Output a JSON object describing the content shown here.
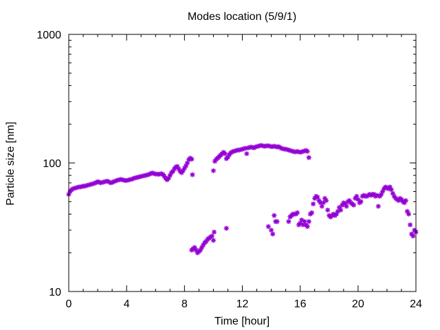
{
  "chart_data": {
    "type": "scatter",
    "title": "Modes location (5/9/1)",
    "xlabel": "Time [hour]",
    "ylabel": "Particle size [nm]",
    "xlim": [
      0,
      24
    ],
    "ylim": [
      10,
      1000
    ],
    "yscale": "log",
    "grid": false,
    "legend": "none",
    "marker": "asterisk",
    "color": "#9400d3",
    "x_ticks": [
      {
        "value": 0,
        "label": "0"
      },
      {
        "value": 4,
        "label": "4"
      },
      {
        "value": 8,
        "label": "8"
      },
      {
        "value": 12,
        "label": "12"
      },
      {
        "value": 16,
        "label": "16"
      },
      {
        "value": 20,
        "label": "20"
      },
      {
        "value": 24,
        "label": "24"
      }
    ],
    "y_ticks": [
      {
        "value": 10,
        "label": "10"
      },
      {
        "value": 100,
        "label": "100"
      },
      {
        "value": 1000,
        "label": "1000"
      }
    ],
    "x_minor_step": 1,
    "series": [
      {
        "points": [
          [
            0.0,
            57
          ],
          [
            0.1,
            60
          ],
          [
            0.2,
            62
          ],
          [
            0.3,
            63
          ],
          [
            0.4,
            63.5
          ],
          [
            0.5,
            64
          ],
          [
            0.6,
            64.5
          ],
          [
            0.7,
            65
          ],
          [
            0.8,
            65
          ],
          [
            0.9,
            65.5
          ],
          [
            1.0,
            66
          ],
          [
            1.1,
            66
          ],
          [
            1.2,
            66.5
          ],
          [
            1.3,
            67
          ],
          [
            1.4,
            67.5
          ],
          [
            1.5,
            68
          ],
          [
            1.6,
            68.5
          ],
          [
            1.7,
            69
          ],
          [
            1.8,
            69.5
          ],
          [
            1.9,
            70.5
          ],
          [
            2.0,
            71.5
          ],
          [
            2.1,
            71
          ],
          [
            2.2,
            70
          ],
          [
            2.3,
            70.5
          ],
          [
            2.4,
            71
          ],
          [
            2.5,
            71.5
          ],
          [
            2.6,
            72
          ],
          [
            2.7,
            72
          ],
          [
            2.8,
            71
          ],
          [
            2.9,
            70
          ],
          [
            3.0,
            70.5
          ],
          [
            3.1,
            71.5
          ],
          [
            3.2,
            72
          ],
          [
            3.3,
            73
          ],
          [
            3.4,
            73.5
          ],
          [
            3.5,
            74
          ],
          [
            3.6,
            74.5
          ],
          [
            3.7,
            74
          ],
          [
            3.8,
            73.5
          ],
          [
            3.9,
            73
          ],
          [
            4.0,
            73
          ],
          [
            4.1,
            73.5
          ],
          [
            4.2,
            74
          ],
          [
            4.3,
            74.5
          ],
          [
            4.4,
            75
          ],
          [
            4.5,
            76
          ],
          [
            4.6,
            76.5
          ],
          [
            4.7,
            77
          ],
          [
            4.8,
            77.5
          ],
          [
            4.9,
            78
          ],
          [
            5.0,
            78.5
          ],
          [
            5.1,
            79
          ],
          [
            5.2,
            79.5
          ],
          [
            5.3,
            80
          ],
          [
            5.4,
            80.5
          ],
          [
            5.5,
            81
          ],
          [
            5.6,
            82
          ],
          [
            5.7,
            83
          ],
          [
            5.8,
            83.5
          ],
          [
            5.9,
            82.5
          ],
          [
            6.0,
            82
          ],
          [
            6.1,
            82
          ],
          [
            6.2,
            81.5
          ],
          [
            6.3,
            82
          ],
          [
            6.4,
            82.5
          ],
          [
            6.5,
            81.5
          ],
          [
            6.6,
            79
          ],
          [
            6.7,
            76
          ],
          [
            6.8,
            74
          ],
          [
            6.9,
            76
          ],
          [
            7.0,
            80
          ],
          [
            7.1,
            84
          ],
          [
            7.2,
            86
          ],
          [
            7.3,
            90
          ],
          [
            7.4,
            93
          ],
          [
            7.5,
            94
          ],
          [
            7.6,
            90
          ],
          [
            7.7,
            86
          ],
          [
            7.8,
            84
          ],
          [
            7.9,
            87
          ],
          [
            8.0,
            91
          ],
          [
            8.1,
            95
          ],
          [
            8.2,
            100
          ],
          [
            8.3,
            106
          ],
          [
            8.4,
            109
          ],
          [
            8.5,
            107
          ],
          [
            8.55,
            81
          ],
          [
            10.0,
            87
          ],
          [
            10.1,
            103
          ],
          [
            10.2,
            107
          ],
          [
            10.3,
            109
          ],
          [
            10.4,
            112
          ],
          [
            10.5,
            115
          ],
          [
            10.6,
            118
          ],
          [
            10.7,
            121
          ],
          [
            10.8,
            118
          ],
          [
            10.9,
            108
          ],
          [
            11.0,
            111
          ],
          [
            11.1,
            116
          ],
          [
            11.2,
            120
          ],
          [
            11.3,
            122
          ],
          [
            11.4,
            123
          ],
          [
            11.5,
            124
          ],
          [
            11.6,
            125
          ],
          [
            11.7,
            126
          ],
          [
            11.8,
            126
          ],
          [
            11.9,
            127
          ],
          [
            12.0,
            128
          ],
          [
            12.1,
            129
          ],
          [
            12.2,
            130
          ],
          [
            12.3,
            118
          ],
          [
            12.4,
            131
          ],
          [
            12.5,
            132
          ],
          [
            12.6,
            133
          ],
          [
            12.7,
            132
          ],
          [
            12.8,
            131
          ],
          [
            12.9,
            133
          ],
          [
            13.0,
            134
          ],
          [
            13.1,
            135
          ],
          [
            13.2,
            136
          ],
          [
            13.3,
            137
          ],
          [
            13.4,
            136
          ],
          [
            13.5,
            135
          ],
          [
            13.6,
            135
          ],
          [
            13.7,
            136
          ],
          [
            13.8,
            136
          ],
          [
            13.9,
            135
          ],
          [
            14.0,
            134
          ],
          [
            14.1,
            134
          ],
          [
            14.2,
            135
          ],
          [
            14.3,
            134
          ],
          [
            14.4,
            133
          ],
          [
            14.5,
            134
          ],
          [
            14.6,
            132
          ],
          [
            14.7,
            130
          ],
          [
            14.8,
            129
          ],
          [
            14.9,
            128
          ],
          [
            15.0,
            128
          ],
          [
            15.1,
            127
          ],
          [
            15.2,
            126
          ],
          [
            15.3,
            125
          ],
          [
            15.4,
            124
          ],
          [
            15.5,
            123
          ],
          [
            15.6,
            122
          ],
          [
            15.7,
            122
          ],
          [
            15.8,
            123
          ],
          [
            15.9,
            122
          ],
          [
            16.0,
            121
          ],
          [
            16.1,
            122
          ],
          [
            16.2,
            123
          ],
          [
            16.3,
            124
          ],
          [
            16.4,
            125
          ],
          [
            16.5,
            123
          ],
          [
            16.6,
            110
          ],
          [
            8.5,
            21
          ],
          [
            8.6,
            21.5
          ],
          [
            8.7,
            22
          ],
          [
            8.8,
            21
          ],
          [
            8.9,
            20
          ],
          [
            9.0,
            20.5
          ],
          [
            9.1,
            21
          ],
          [
            9.2,
            22
          ],
          [
            9.3,
            23
          ],
          [
            9.4,
            24
          ],
          [
            9.5,
            24.5
          ],
          [
            9.6,
            25.5
          ],
          [
            9.7,
            26
          ],
          [
            9.8,
            26.5
          ],
          [
            9.9,
            27
          ],
          [
            10.0,
            25
          ],
          [
            10.05,
            29
          ],
          [
            10.9,
            31
          ],
          [
            13.8,
            32
          ],
          [
            14.0,
            30
          ],
          [
            14.1,
            28
          ],
          [
            14.2,
            39
          ],
          [
            14.3,
            35
          ],
          [
            14.4,
            35
          ],
          [
            15.2,
            35
          ],
          [
            15.3,
            38
          ],
          [
            15.4,
            39
          ],
          [
            15.5,
            40
          ],
          [
            15.6,
            40
          ],
          [
            15.7,
            40
          ],
          [
            15.8,
            41
          ],
          [
            15.9,
            33
          ],
          [
            16.0,
            34
          ],
          [
            16.1,
            36
          ],
          [
            16.2,
            33
          ],
          [
            16.3,
            35
          ],
          [
            16.4,
            33
          ],
          [
            16.5,
            32
          ],
          [
            16.6,
            35
          ],
          [
            16.7,
            40
          ],
          [
            16.8,
            41
          ],
          [
            16.9,
            48
          ],
          [
            17.0,
            53
          ],
          [
            17.1,
            55
          ],
          [
            17.2,
            54
          ],
          [
            17.3,
            51
          ],
          [
            17.4,
            49
          ],
          [
            17.5,
            46
          ],
          [
            17.6,
            49
          ],
          [
            17.7,
            53
          ],
          [
            17.8,
            51
          ],
          [
            17.9,
            43
          ],
          [
            18.0,
            39
          ],
          [
            18.1,
            38
          ],
          [
            18.2,
            39
          ],
          [
            18.3,
            40
          ],
          [
            18.4,
            39
          ],
          [
            18.5,
            40
          ],
          [
            18.6,
            42
          ],
          [
            18.7,
            45
          ],
          [
            18.8,
            43
          ],
          [
            18.9,
            47
          ],
          [
            19.0,
            49
          ],
          [
            19.1,
            48
          ],
          [
            19.2,
            46
          ],
          [
            19.3,
            50
          ],
          [
            19.4,
            51
          ],
          [
            19.5,
            49
          ],
          [
            19.6,
            48
          ],
          [
            19.7,
            47
          ],
          [
            19.8,
            53
          ],
          [
            19.9,
            55
          ],
          [
            20.0,
            52
          ],
          [
            20.1,
            49
          ],
          [
            20.2,
            50
          ],
          [
            20.3,
            55
          ],
          [
            20.4,
            56
          ],
          [
            20.5,
            55
          ],
          [
            20.6,
            55
          ],
          [
            20.7,
            56
          ],
          [
            20.8,
            57
          ],
          [
            20.9,
            56
          ],
          [
            21.0,
            57
          ],
          [
            21.1,
            57
          ],
          [
            21.2,
            55
          ],
          [
            21.3,
            56
          ],
          [
            21.4,
            46
          ],
          [
            21.5,
            55
          ],
          [
            21.6,
            57
          ],
          [
            21.7,
            60
          ],
          [
            21.8,
            63
          ],
          [
            21.9,
            65
          ],
          [
            22.0,
            64
          ],
          [
            22.1,
            63
          ],
          [
            22.2,
            65
          ],
          [
            22.3,
            62
          ],
          [
            22.4,
            58
          ],
          [
            22.5,
            55
          ],
          [
            22.6,
            53
          ],
          [
            22.7,
            52
          ],
          [
            22.8,
            51
          ],
          [
            22.9,
            53
          ],
          [
            23.0,
            52
          ],
          [
            23.1,
            50
          ],
          [
            23.2,
            49
          ],
          [
            23.3,
            51
          ],
          [
            23.4,
            42
          ],
          [
            23.5,
            40
          ],
          [
            23.6,
            33
          ],
          [
            23.7,
            28
          ],
          [
            23.8,
            27
          ],
          [
            23.9,
            30
          ],
          [
            24.0,
            29
          ]
        ]
      }
    ]
  }
}
